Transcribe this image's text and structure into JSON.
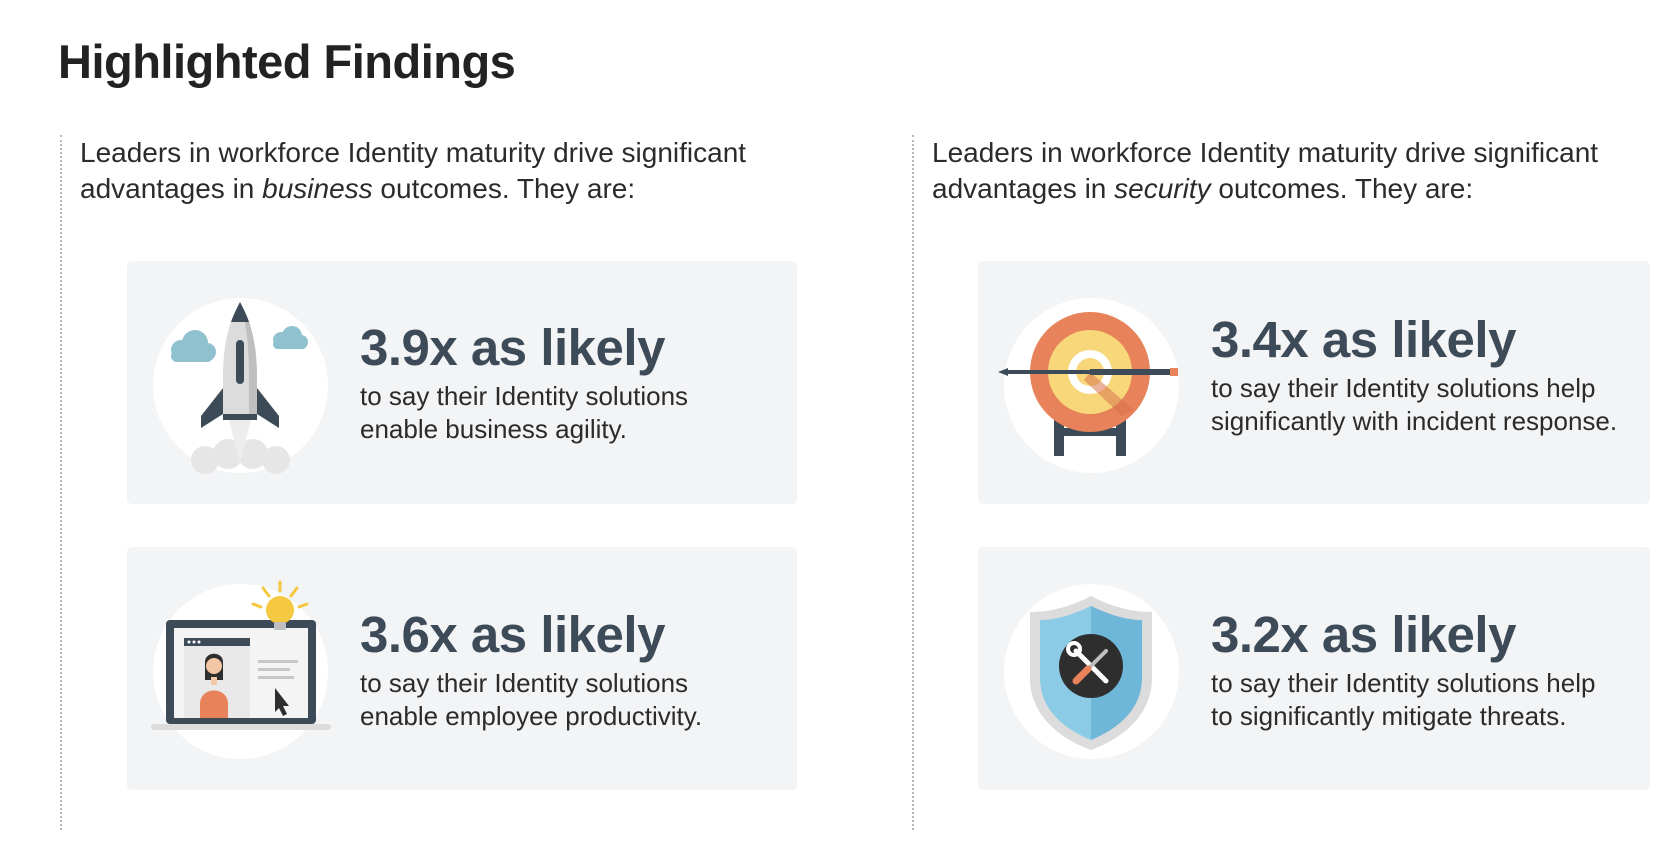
{
  "title": "Highlighted Findings",
  "columns": [
    {
      "intro": {
        "line1": "Leaders in workforce Identity maturity drive significant",
        "prefix": "advantages in ",
        "emphasis": "business",
        "suffix": " outcomes. They are:"
      },
      "cards": [
        {
          "icon": "rocket-icon",
          "stat": "3.9x as likely",
          "desc_line1": "to say their Identity solutions",
          "desc_line2": "enable business agility."
        },
        {
          "icon": "laptop-user-icon",
          "stat": "3.6x as likely",
          "desc_line1": "to say their Identity solutions",
          "desc_line2": "enable employee productivity."
        }
      ]
    },
    {
      "intro": {
        "line1": "Leaders in workforce Identity maturity drive significant",
        "prefix": "advantages in ",
        "emphasis": "security",
        "suffix": " outcomes. They are:"
      },
      "cards": [
        {
          "icon": "target-icon",
          "stat": "3.4x as likely",
          "desc_line1": "to say their Identity solutions help",
          "desc_line2": "significantly with incident response."
        },
        {
          "icon": "shield-tools-icon",
          "stat": "3.2x as likely",
          "desc_line1": "to say their Identity solutions help",
          "desc_line2": "to significantly mitigate threats."
        }
      ]
    }
  ],
  "colors": {
    "stat_text": "#3d4a57",
    "card_bg": "#f3f4f6",
    "target_outer": "#e8825a",
    "target_inner": "#f7d77a",
    "shield_blue": "#8ccbe6",
    "cloud_blue": "#8fc1cf"
  }
}
